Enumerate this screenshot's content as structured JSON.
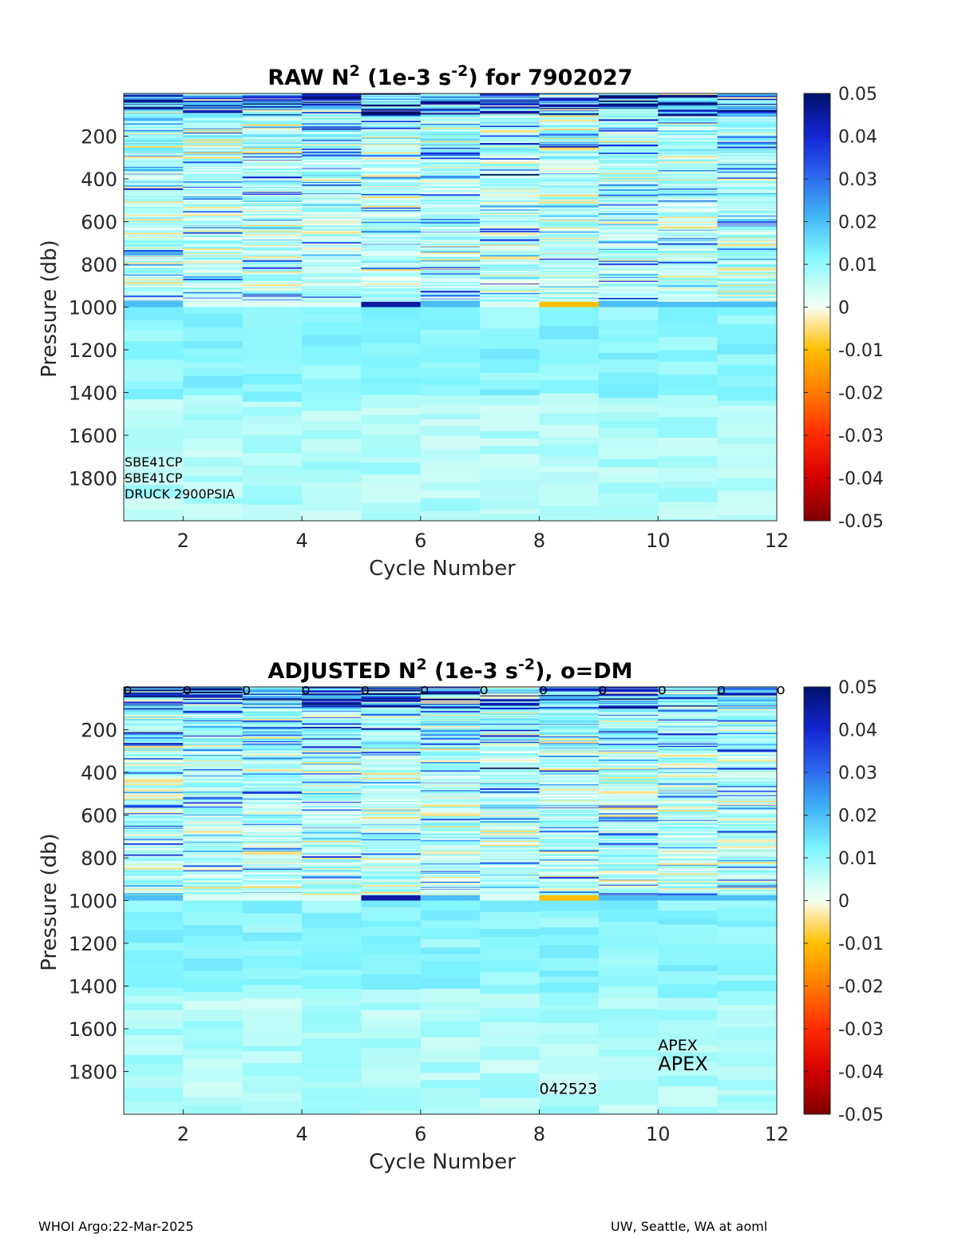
{
  "chart_data": [
    {
      "type": "heatmap",
      "title_main": "RAW N",
      "title_sup1": "2",
      "title_mid": " (1e-3 s",
      "title_sup2": "-2",
      "title_end": ") for 7902027",
      "xlabel": "Cycle Number",
      "ylabel": "Pressure (db)",
      "xlim": [
        1,
        12
      ],
      "ylim": [
        0,
        2000
      ],
      "y_reversed": true,
      "xticks": [
        2,
        4,
        6,
        8,
        10,
        12
      ],
      "yticks": [
        200,
        400,
        600,
        800,
        1000,
        1200,
        1400,
        1600,
        1800
      ],
      "cycles": [
        1,
        2,
        3,
        4,
        5,
        6,
        7,
        8,
        9,
        10,
        11
      ],
      "colorbar": {
        "range": [
          -0.05,
          0.05
        ],
        "ticks": [
          "0.05",
          "0.04",
          "0.03",
          "0.02",
          "0.01",
          "0",
          "-0.01",
          "-0.02",
          "-0.03",
          "-0.04",
          "-0.05"
        ],
        "colormap": "blue-cyan-white-yellow-red"
      },
      "sensor_labels": [
        "SBE41CP",
        "SBE41CP",
        "DRUCK 2900PSIA"
      ],
      "annotations": []
    },
    {
      "type": "heatmap",
      "title_main": "ADJUSTED N",
      "title_sup1": "2",
      "title_mid": " (1e-3 s",
      "title_sup2": "-2",
      "title_end": "), o=DM",
      "xlabel": "Cycle Number",
      "ylabel": "Pressure (db)",
      "xlim": [
        1,
        12
      ],
      "ylim": [
        0,
        2000
      ],
      "y_reversed": true,
      "xticks": [
        2,
        4,
        6,
        8,
        10,
        12
      ],
      "yticks": [
        200,
        400,
        600,
        800,
        1000,
        1200,
        1400,
        1600,
        1800
      ],
      "cycles": [
        1,
        2,
        3,
        4,
        5,
        6,
        7,
        8,
        9,
        10,
        11
      ],
      "dm_marker": "o",
      "dm_cycles": [
        1,
        2,
        3,
        4,
        5,
        6,
        7,
        8,
        9,
        10,
        11,
        12
      ],
      "colorbar": {
        "range": [
          -0.05,
          0.05
        ],
        "ticks": [
          "0.05",
          "0.04",
          "0.03",
          "0.02",
          "0.01",
          "0",
          "-0.01",
          "-0.02",
          "-0.03",
          "-0.04",
          "-0.05"
        ],
        "colormap": "blue-cyan-white-yellow-red"
      },
      "sensor_labels": [],
      "annotations": [
        {
          "text": "APEX",
          "x": 10,
          "y": 1700,
          "size": "small"
        },
        {
          "text": "APEX",
          "x": 10,
          "y": 1795,
          "size": "large"
        },
        {
          "text": "042523",
          "x": 8,
          "y": 1905,
          "size": "small"
        }
      ]
    }
  ],
  "footer": {
    "left": "WHOI Argo:22-Mar-2025",
    "right": "UW, Seattle, WA at aoml"
  }
}
